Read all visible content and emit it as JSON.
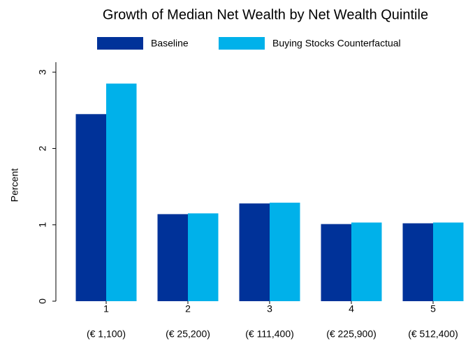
{
  "chart_data": {
    "type": "bar",
    "title": "Growth of Median Net Wealth by Net Wealth Quintile",
    "y_label": "Percent",
    "categories": [
      "1",
      "2",
      "3",
      "4",
      "5"
    ],
    "category_sublabels": [
      "(€ 1,100)",
      "(€ 25,200)",
      "(€ 111,400)",
      "(€ 225,900)",
      "(€ 512,400)"
    ],
    "series": [
      {
        "name": "Baseline",
        "color": "#003299",
        "values": [
          2.45,
          1.14,
          1.28,
          1.01,
          1.02
        ]
      },
      {
        "name": "Buying Stocks Counterfactual",
        "color": "#00b1ea",
        "values": [
          2.85,
          1.15,
          1.29,
          1.03,
          1.03
        ]
      }
    ],
    "ylim": [
      0,
      3.13
    ],
    "yticks": [
      0,
      1,
      2,
      3
    ],
    "grid": false,
    "legend": "top"
  }
}
